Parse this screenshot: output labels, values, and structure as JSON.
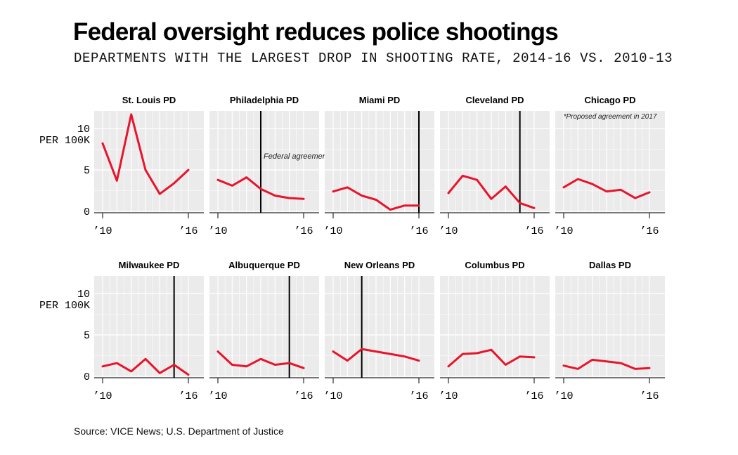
{
  "header": {
    "title": "Federal oversight reduces police shootings",
    "subtitle": "DEPARTMENTS WITH THE LARGEST DROP IN SHOOTING RATE, 2014-16 VS. 2010-13"
  },
  "footer": {
    "source": "Source: VICE News; U.S. Department of Justice"
  },
  "colors": {
    "line": "#e8142b",
    "panel_bg": "#ebebeb",
    "grid": "#ffffff",
    "marker": "#000000"
  },
  "chart_data": {
    "type": "line",
    "x": [
      2010,
      2011,
      2012,
      2013,
      2014,
      2015,
      2016
    ],
    "ylim": [
      0,
      12
    ],
    "yticks": [
      0,
      5,
      10
    ],
    "ylabel": "PER 100K",
    "xtick_labels": [
      "’10",
      "’16"
    ],
    "panels": [
      {
        "name": "St. Louis PD",
        "values": [
          8.2,
          3.7,
          11.7,
          5.0,
          2.1,
          3.4,
          5.0
        ],
        "agreement_year": null,
        "annotation": null
      },
      {
        "name": "Philadelphia PD",
        "values": [
          3.8,
          3.1,
          4.1,
          2.7,
          1.9,
          1.6,
          1.5
        ],
        "agreement_year": 2013,
        "annotation": "Federal agreement"
      },
      {
        "name": "Miami PD",
        "values": [
          2.4,
          2.9,
          1.9,
          1.4,
          0.2,
          0.7,
          0.7
        ],
        "agreement_year": 2016,
        "annotation": null
      },
      {
        "name": "Cleveland PD",
        "values": [
          2.2,
          4.3,
          3.8,
          1.5,
          3.0,
          1.0,
          0.4
        ],
        "agreement_year": 2015,
        "annotation": null
      },
      {
        "name": "Chicago PD",
        "values": [
          2.9,
          3.9,
          3.3,
          2.4,
          2.6,
          1.6,
          2.3
        ],
        "agreement_year": null,
        "annotation": "*Proposed agreement in 2017"
      },
      {
        "name": "Milwaukee PD",
        "values": [
          1.2,
          1.6,
          0.6,
          2.1,
          0.4,
          1.4,
          0.2
        ],
        "agreement_year": 2015,
        "annotation": null
      },
      {
        "name": "Albuquerque PD",
        "values": [
          3.0,
          1.4,
          1.2,
          2.1,
          1.4,
          1.6,
          1.0
        ],
        "agreement_year": 2015,
        "annotation": null
      },
      {
        "name": "New Orleans PD",
        "values": [
          3.0,
          1.9,
          3.3,
          3.0,
          2.7,
          2.4,
          1.9
        ],
        "agreement_year": 2012,
        "annotation": null
      },
      {
        "name": "Columbus PD",
        "values": [
          1.2,
          2.7,
          2.8,
          3.2,
          1.4,
          2.4,
          2.3
        ],
        "agreement_year": null,
        "annotation": null
      },
      {
        "name": "Dallas PD",
        "values": [
          1.3,
          0.9,
          2.0,
          1.8,
          1.6,
          0.9,
          1.0
        ],
        "agreement_year": null,
        "annotation": null
      }
    ]
  }
}
